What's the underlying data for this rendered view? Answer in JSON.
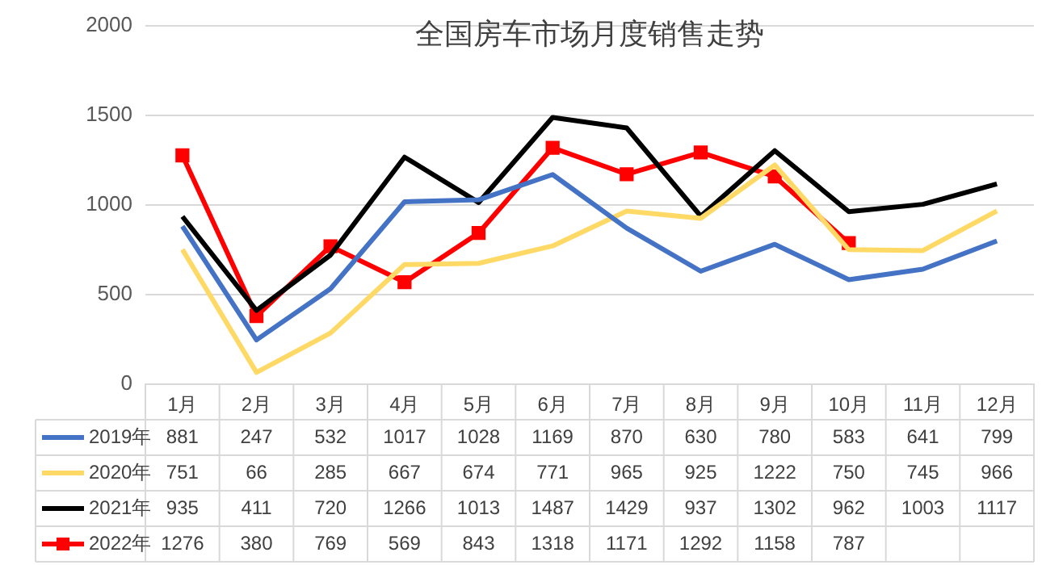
{
  "chart_data": {
    "type": "line",
    "title": "全国房车市场月度销售走势",
    "categories": [
      "1月",
      "2月",
      "3月",
      "4月",
      "5月",
      "6月",
      "7月",
      "8月",
      "9月",
      "10月",
      "11月",
      "12月"
    ],
    "series": [
      {
        "name": "2019年",
        "color": "#4472c4",
        "marker": "none",
        "values": [
          881,
          247,
          532,
          1017,
          1028,
          1169,
          870,
          630,
          780,
          583,
          641,
          799
        ]
      },
      {
        "name": "2020年",
        "color": "#ffd966",
        "marker": "none",
        "values": [
          751,
          66,
          285,
          667,
          674,
          771,
          965,
          925,
          1222,
          750,
          745,
          966
        ]
      },
      {
        "name": "2021年",
        "color": "#000000",
        "marker": "none",
        "values": [
          935,
          411,
          720,
          1266,
          1013,
          1487,
          1429,
          937,
          1302,
          962,
          1003,
          1117
        ]
      },
      {
        "name": "2022年",
        "color": "#ff0000",
        "marker": "square",
        "values": [
          1276,
          380,
          769,
          569,
          843,
          1318,
          1171,
          1292,
          1158,
          787,
          null,
          null
        ]
      }
    ],
    "ylim": [
      0,
      2000
    ],
    "yticks": [
      0,
      500,
      1000,
      1500,
      2000
    ],
    "grid": "y",
    "legend": "bottom",
    "data_labels": true
  }
}
